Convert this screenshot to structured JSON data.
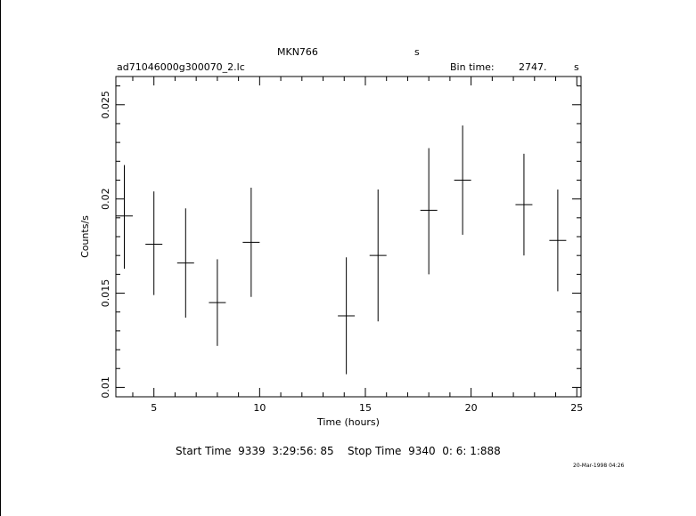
{
  "header": {
    "object_name": "MKN766",
    "object_unit": "s",
    "file_name": "ad71046000g300070_2.lc",
    "bin_label": "Bin time:",
    "bin_value": "2747.",
    "bin_unit": "s"
  },
  "footer": {
    "start_label": "Start Time",
    "start_value": "9339  3:29:56: 85",
    "stop_label": "Stop Time",
    "stop_value": "9340  0: 6: 1:888",
    "timestamp": "20-Mar-1998 04:26"
  },
  "chart_data": {
    "type": "scatter",
    "title": "",
    "xlabel": "Time (hours)",
    "ylabel": "Counts/s",
    "xlim": [
      3.2,
      25.2
    ],
    "ylim": [
      0.0095,
      0.0265
    ],
    "x_ticks": [
      5,
      10,
      15,
      20,
      25
    ],
    "y_ticks": [
      0.01,
      0.015,
      0.02,
      0.025
    ],
    "x_tick_labels": [
      "5",
      "10",
      "15",
      "20",
      "25"
    ],
    "y_tick_labels": [
      "0.01",
      "0.015",
      "0.02",
      "0.025"
    ],
    "grid": false,
    "series": [
      {
        "points": [
          {
            "x": 3.6,
            "y": 0.0191,
            "xerr": 0.4,
            "yerr_low": 0.0028,
            "yerr_high": 0.0027
          },
          {
            "x": 5.0,
            "y": 0.0176,
            "xerr": 0.4,
            "yerr_low": 0.0027,
            "yerr_high": 0.0028
          },
          {
            "x": 6.5,
            "y": 0.0166,
            "xerr": 0.4,
            "yerr_low": 0.0029,
            "yerr_high": 0.0029
          },
          {
            "x": 8.0,
            "y": 0.0145,
            "xerr": 0.4,
            "yerr_low": 0.0023,
            "yerr_high": 0.0023
          },
          {
            "x": 9.6,
            "y": 0.0177,
            "xerr": 0.4,
            "yerr_low": 0.0029,
            "yerr_high": 0.0029
          },
          {
            "x": 14.1,
            "y": 0.0138,
            "xerr": 0.4,
            "yerr_low": 0.0031,
            "yerr_high": 0.0031
          },
          {
            "x": 15.6,
            "y": 0.017,
            "xerr": 0.4,
            "yerr_low": 0.0035,
            "yerr_high": 0.0035
          },
          {
            "x": 18.0,
            "y": 0.0194,
            "xerr": 0.4,
            "yerr_low": 0.0034,
            "yerr_high": 0.0033
          },
          {
            "x": 19.6,
            "y": 0.021,
            "xerr": 0.4,
            "yerr_low": 0.0029,
            "yerr_high": 0.0029
          },
          {
            "x": 22.5,
            "y": 0.0197,
            "xerr": 0.4,
            "yerr_low": 0.0027,
            "yerr_high": 0.0027
          },
          {
            "x": 24.1,
            "y": 0.0178,
            "xerr": 0.4,
            "yerr_low": 0.0027,
            "yerr_high": 0.0027
          }
        ]
      }
    ]
  }
}
